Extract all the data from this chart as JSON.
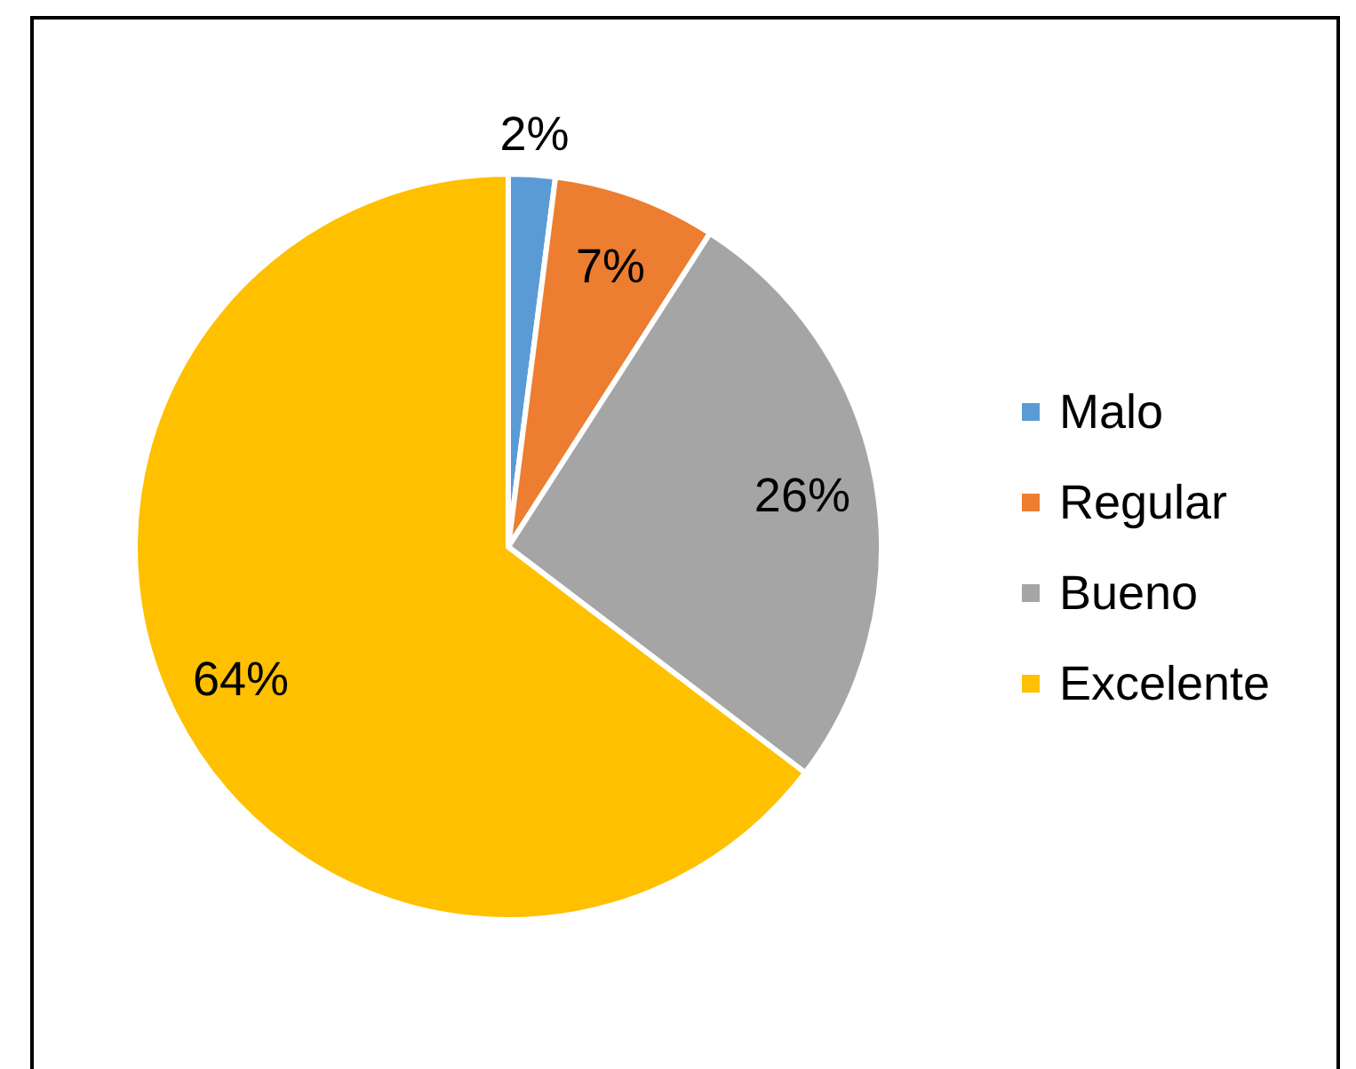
{
  "chart_data": {
    "type": "pie",
    "categories": [
      "Malo",
      "Regular",
      "Bueno",
      "Excelente"
    ],
    "values": [
      2,
      7,
      26,
      64
    ],
    "colors": [
      "#5b9bd5",
      "#ed7d31",
      "#a5a5a5",
      "#ffc000"
    ],
    "value_labels": [
      "2%",
      "7%",
      "26%",
      "64%"
    ],
    "legend": "right"
  }
}
